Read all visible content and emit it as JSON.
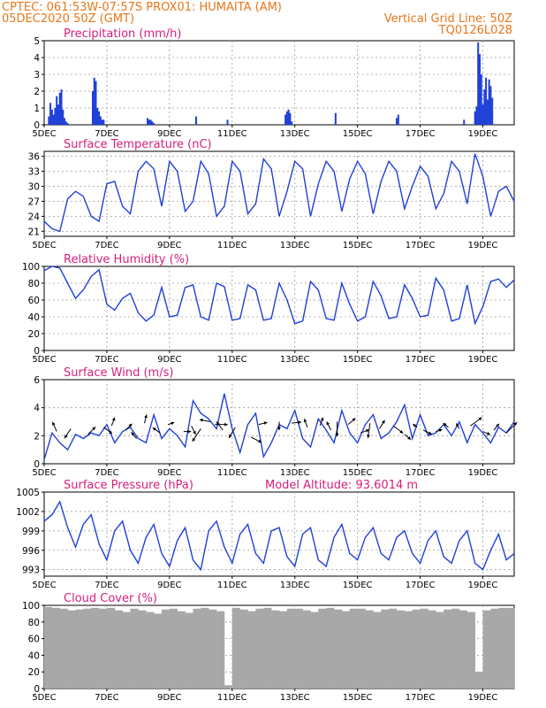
{
  "header": {
    "line1_left": "CPTEC:   061:53W-07:57S   PROX01: HUMAITA (AM)",
    "line2_left": "05DEC2020 50Z (GMT)",
    "line2_right": "Vertical Grid Line: 50Z",
    "line3_right": "TQ0126L028"
  },
  "x_ticks": [
    "5DEC",
    "7DEC",
    "9DEC",
    "11DEC",
    "13DEC",
    "15DEC",
    "17DEC",
    "19DEC"
  ],
  "colors": {
    "series": "#2040d8",
    "header": "#e8761a",
    "panel_title": "#d81e7c",
    "cloud": "#a8a8a8",
    "grid": "#9a9a9a"
  },
  "panels": {
    "precip": {
      "title": "Precipitation (mm/h)"
    },
    "temp": {
      "title": "Surface Temperature (nC)"
    },
    "rh": {
      "title": "Relative Humidity (%)"
    },
    "wind": {
      "title": "Surface Wind (m/s)"
    },
    "pres": {
      "title": "Surface Pressure (hPa)",
      "extra": "Model Altitude: 93.6014 m"
    },
    "cloud": {
      "title": "Cloud Cover (%)"
    }
  },
  "chart_data": [
    {
      "type": "bar",
      "title": "Precipitation (mm/h)",
      "ylim": [
        0,
        5
      ],
      "yticks": [
        0,
        1,
        2,
        3,
        4,
        5
      ],
      "x": [
        5.15,
        5.2,
        5.25,
        5.3,
        5.35,
        5.4,
        5.45,
        5.5,
        5.55,
        5.6,
        5.65,
        5.7,
        5.75,
        6.55,
        6.6,
        6.65,
        6.7,
        6.75,
        6.8,
        6.85,
        6.9,
        8.3,
        8.35,
        8.4,
        8.45,
        8.5,
        9.85,
        10.85,
        12.7,
        12.75,
        12.8,
        12.85,
        12.9,
        14.3,
        16.25,
        16.3,
        18.4,
        18.75,
        18.8,
        18.85,
        18.9,
        18.95,
        19.0,
        19.05,
        19.1,
        19.15,
        19.2,
        19.25,
        19.3
      ],
      "values": [
        0.5,
        1.3,
        0.9,
        0.6,
        1.0,
        1.7,
        1.2,
        1.9,
        2.1,
        0.9,
        0.4,
        0.2,
        0.1,
        2.0,
        2.8,
        2.6,
        1.0,
        0.8,
        0.5,
        0.3,
        0.3,
        0.4,
        0.3,
        0.3,
        0.2,
        0.1,
        0.5,
        0.3,
        0.6,
        0.8,
        0.9,
        0.7,
        0.2,
        0.7,
        0.4,
        0.6,
        0.3,
        0.8,
        1.1,
        4.9,
        4.2,
        3.0,
        1.2,
        2.1,
        2.8,
        1.5,
        2.7,
        2.3,
        1.6
      ]
    },
    {
      "type": "line",
      "title": "Surface Temperature (nC)",
      "ylim": [
        20,
        37
      ],
      "yticks": [
        21,
        24,
        27,
        30,
        33,
        36
      ],
      "x": [
        5.0,
        5.25,
        5.5,
        5.75,
        6.0,
        6.25,
        6.5,
        6.75,
        7.0,
        7.25,
        7.5,
        7.75,
        8.0,
        8.25,
        8.5,
        8.75,
        9.0,
        9.25,
        9.5,
        9.75,
        10.0,
        10.25,
        10.5,
        10.75,
        11.0,
        11.25,
        11.5,
        11.75,
        12.0,
        12.25,
        12.5,
        12.75,
        13.0,
        13.25,
        13.5,
        13.75,
        14.0,
        14.25,
        14.5,
        14.75,
        15.0,
        15.25,
        15.5,
        15.75,
        16.0,
        16.25,
        16.5,
        16.75,
        17.0,
        17.25,
        17.5,
        17.75,
        18.0,
        18.25,
        18.5,
        18.75,
        19.0,
        19.25,
        19.5,
        19.75,
        20.0
      ],
      "values": [
        23.0,
        21.5,
        21.0,
        27.5,
        29.0,
        28.0,
        24.0,
        23.0,
        30.5,
        31.0,
        26.0,
        24.5,
        33.0,
        35.0,
        33.5,
        26.0,
        35.0,
        33.0,
        25.0,
        27.0,
        35.0,
        32.5,
        24.0,
        26.0,
        35.0,
        33.0,
        24.5,
        26.5,
        35.5,
        33.5,
        24.0,
        29.0,
        35.0,
        33.5,
        24.0,
        30.5,
        35.0,
        33.0,
        25.0,
        31.5,
        35.0,
        32.5,
        24.5,
        31.0,
        35.0,
        33.0,
        25.5,
        30.0,
        34.0,
        32.0,
        25.5,
        28.5,
        35.0,
        33.0,
        26.5,
        36.5,
        32.0,
        24.0,
        29.0,
        30.0,
        27.0
      ]
    },
    {
      "type": "line",
      "title": "Relative Humidity (%)",
      "ylim": [
        0,
        100
      ],
      "yticks": [
        0,
        20,
        40,
        60,
        80,
        100
      ],
      "x": [
        5.0,
        5.25,
        5.5,
        5.75,
        6.0,
        6.25,
        6.5,
        6.75,
        7.0,
        7.25,
        7.5,
        7.75,
        8.0,
        8.25,
        8.5,
        8.75,
        9.0,
        9.25,
        9.5,
        9.75,
        10.0,
        10.25,
        10.5,
        10.75,
        11.0,
        11.25,
        11.5,
        11.75,
        12.0,
        12.25,
        12.5,
        12.75,
        13.0,
        13.25,
        13.5,
        13.75,
        14.0,
        14.25,
        14.5,
        14.75,
        15.0,
        15.25,
        15.5,
        15.75,
        16.0,
        16.25,
        16.5,
        16.75,
        17.0,
        17.25,
        17.5,
        17.75,
        18.0,
        18.25,
        18.5,
        18.75,
        19.0,
        19.25,
        19.5,
        19.75,
        20.0
      ],
      "values": [
        95,
        100,
        98,
        80,
        62,
        72,
        88,
        96,
        55,
        48,
        62,
        68,
        45,
        35,
        42,
        75,
        40,
        42,
        75,
        78,
        40,
        36,
        80,
        76,
        36,
        38,
        78,
        72,
        36,
        38,
        80,
        60,
        32,
        35,
        82,
        72,
        38,
        36,
        80,
        55,
        35,
        40,
        82,
        65,
        38,
        40,
        78,
        62,
        40,
        42,
        86,
        72,
        35,
        38,
        78,
        32,
        52,
        82,
        85,
        75,
        84
      ]
    },
    {
      "type": "line",
      "title": "Surface Wind (m/s)",
      "ylim": [
        0,
        6
      ],
      "yticks": [
        0,
        2,
        4,
        6
      ],
      "x": [
        5.0,
        5.25,
        5.5,
        5.75,
        6.0,
        6.25,
        6.5,
        6.75,
        7.0,
        7.25,
        7.5,
        7.75,
        8.0,
        8.25,
        8.5,
        8.75,
        9.0,
        9.25,
        9.5,
        9.75,
        10.0,
        10.25,
        10.5,
        10.75,
        11.0,
        11.25,
        11.5,
        11.75,
        12.0,
        12.25,
        12.5,
        12.75,
        13.0,
        13.25,
        13.5,
        13.75,
        14.0,
        14.25,
        14.5,
        14.75,
        15.0,
        15.25,
        15.5,
        15.75,
        16.0,
        16.25,
        16.5,
        16.75,
        17.0,
        17.25,
        17.5,
        17.75,
        18.0,
        18.25,
        18.5,
        18.75,
        19.0,
        19.25,
        19.5,
        19.75,
        20.0
      ],
      "values": [
        0.3,
        2.2,
        1.5,
        1.0,
        2.1,
        1.8,
        2.2,
        2.0,
        2.8,
        1.5,
        2.3,
        2.6,
        1.8,
        1.5,
        3.5,
        1.8,
        2.5,
        2.0,
        1.2,
        4.5,
        3.6,
        3.2,
        2.5,
        5.0,
        2.5,
        0.8,
        2.8,
        3.6,
        0.5,
        1.5,
        2.8,
        2.5,
        3.8,
        1.8,
        1.2,
        3.2,
        2.4,
        1.5,
        3.8,
        2.2,
        1.5,
        2.8,
        3.5,
        1.8,
        2.2,
        3.0,
        4.2,
        1.8,
        3.5,
        2.0,
        2.2,
        2.8,
        2.0,
        3.0,
        1.5,
        2.8,
        2.2,
        1.5,
        2.6,
        2.2,
        3.0
      ]
    },
    {
      "type": "line",
      "title": "Surface Pressure (hPa)",
      "ylim": [
        992,
        1005
      ],
      "yticks": [
        993,
        996,
        999,
        1002,
        1005
      ],
      "x": [
        5.0,
        5.25,
        5.5,
        5.75,
        6.0,
        6.25,
        6.5,
        6.75,
        7.0,
        7.25,
        7.5,
        7.75,
        8.0,
        8.25,
        8.5,
        8.75,
        9.0,
        9.25,
        9.5,
        9.75,
        10.0,
        10.25,
        10.5,
        10.75,
        11.0,
        11.25,
        11.5,
        11.75,
        12.0,
        12.25,
        12.5,
        12.75,
        13.0,
        13.25,
        13.5,
        13.75,
        14.0,
        14.25,
        14.5,
        14.75,
        15.0,
        15.25,
        15.5,
        15.75,
        16.0,
        16.25,
        16.5,
        16.75,
        17.0,
        17.25,
        17.5,
        17.75,
        18.0,
        18.25,
        18.5,
        18.75,
        19.0,
        19.25,
        19.5,
        19.75,
        20.0
      ],
      "values": [
        1000.5,
        1001.5,
        1003.5,
        999.5,
        996.5,
        1000.0,
        1001.5,
        997.0,
        994.5,
        999.0,
        1000.5,
        996.0,
        994.0,
        998.0,
        1000.0,
        995.5,
        993.5,
        997.5,
        999.5,
        994.5,
        993.0,
        999.0,
        1000.5,
        996.5,
        994.0,
        998.5,
        1000.0,
        995.5,
        994.0,
        999.0,
        999.5,
        995.0,
        993.5,
        998.5,
        999.5,
        994.5,
        993.5,
        998.0,
        1000.0,
        995.5,
        994.5,
        998.0,
        999.5,
        995.5,
        994.5,
        998.0,
        999.0,
        995.5,
        994.0,
        997.5,
        999.0,
        995.0,
        994.0,
        997.5,
        999.0,
        994.0,
        993.0,
        996.0,
        998.5,
        994.5,
        995.5
      ]
    },
    {
      "type": "bar",
      "title": "Cloud Cover (%)",
      "ylim": [
        0,
        100
      ],
      "yticks": [
        0,
        20,
        40,
        60,
        80,
        100
      ],
      "x": [
        5.0,
        5.25,
        5.5,
        5.75,
        6.0,
        6.25,
        6.5,
        6.75,
        7.0,
        7.25,
        7.5,
        7.75,
        8.0,
        8.25,
        8.5,
        8.75,
        9.0,
        9.25,
        9.5,
        9.75,
        10.0,
        10.25,
        10.5,
        10.75,
        11.0,
        11.25,
        11.5,
        11.75,
        12.0,
        12.25,
        12.5,
        12.75,
        13.0,
        13.25,
        13.5,
        13.75,
        14.0,
        14.25,
        14.5,
        14.75,
        15.0,
        15.25,
        15.5,
        15.75,
        16.0,
        16.25,
        16.5,
        16.75,
        17.0,
        17.25,
        17.5,
        17.75,
        18.0,
        18.25,
        18.5,
        18.75,
        19.0,
        19.25,
        19.5,
        19.75
      ],
      "values": [
        98,
        97,
        96,
        94,
        95,
        96,
        97,
        96,
        97,
        94,
        92,
        96,
        94,
        92,
        90,
        95,
        96,
        93,
        91,
        96,
        97,
        95,
        93,
        4,
        97,
        95,
        93,
        96,
        97,
        94,
        93,
        96,
        96,
        94,
        92,
        96,
        97,
        95,
        93,
        96,
        96,
        94,
        92,
        95,
        96,
        94,
        93,
        95,
        96,
        94,
        92,
        95,
        96,
        94,
        92,
        20,
        94,
        96,
        97,
        97
      ]
    },
    {
      "type": "scatter",
      "title": "Surface Wind (m/s) direction vectors",
      "x": [
        5.4,
        5.85,
        6.4,
        6.9,
        7.15,
        7.6,
        7.95,
        8.2,
        8.7,
        8.95,
        9.45,
        9.7,
        10.0,
        10.3,
        10.45,
        10.7,
        11.1,
        11.6,
        11.85,
        12.5,
        12.9,
        13.4,
        13.8,
        14.15,
        14.35,
        14.7,
        15.1,
        15.4,
        15.7,
        16.15,
        16.5,
        16.9,
        17.1,
        17.5,
        17.9,
        18.25,
        18.6,
        19.0,
        19.35,
        19.75
      ],
      "y": [
        2.3,
        2.5,
        2.1,
        2.6,
        2.7,
        2.4,
        1.8,
        2.9,
        2.2,
        2.8,
        2.3,
        2.7,
        2.5,
        3.0,
        2.8,
        2.4,
        2.6,
        1.9,
        2.8,
        3.0,
        2.9,
        2.6,
        2.7,
        2.4,
        3.0,
        2.8,
        2.2,
        2.9,
        2.5,
        2.7,
        2.1,
        2.6,
        2.4,
        2.3,
        2.6,
        2.5,
        2.7,
        2.3,
        2.4,
        2.2
      ],
      "u": [
        -0.4,
        -0.6,
        0.7,
        0.8,
        0.3,
        0.6,
        -0.5,
        0.2,
        -0.7,
        0.6,
        0.7,
        0.4,
        -0.8,
        -1.0,
        1.2,
        -0.6,
        -0.6,
        1.0,
        0.8,
        0.0,
        0.9,
        -0.3,
        0.3,
        -0.4,
        0.0,
        0.7,
        0.8,
        -0.2,
        0.5,
        0.9,
        0.6,
        -0.4,
        0.8,
        0.6,
        -0.5,
        -0.3,
        1.1,
        0.7,
        0.5,
        1.0
      ],
      "v": [
        0.9,
        -0.9,
        0.7,
        -0.6,
        0.8,
        0.6,
        0.6,
        0.8,
        0.5,
        0.2,
        0.0,
        -0.8,
        -1.2,
        0.2,
        0.0,
        0.8,
        -1.0,
        -0.5,
        0.2,
        -0.8,
        0.1,
        0.8,
        0.8,
        0.8,
        -1.4,
        0.6,
        0.3,
        -1.4,
        0.8,
        -0.7,
        -0.5,
        0.3,
        -0.4,
        0.2,
        0.4,
        0.5,
        0.8,
        -0.3,
        0.6,
        1.0
      ]
    }
  ]
}
